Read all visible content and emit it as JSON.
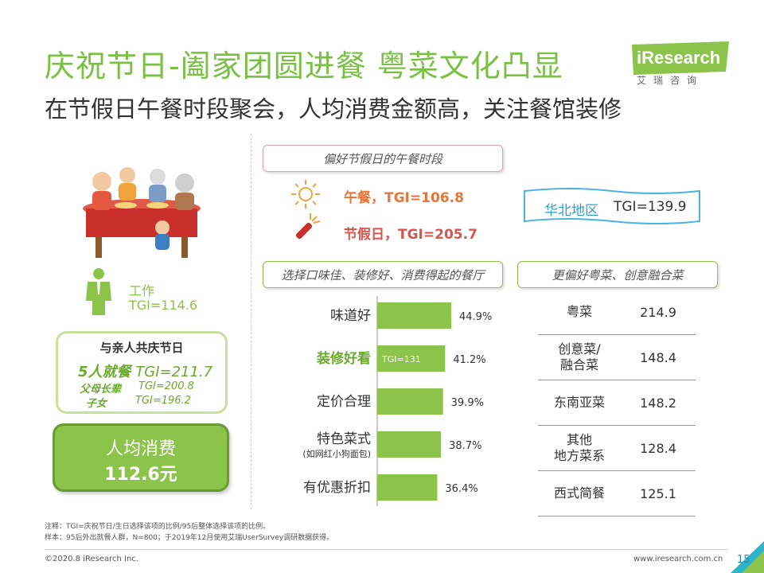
{
  "title": "庆祝节日-阖家团圆进餐 粤菜文化凸显",
  "subtitle": "在节假日午餐时段聚会，人均消费金额高，关注餐馆装修",
  "logo": {
    "word": "iResearch",
    "cn": "艾瑞咨询"
  },
  "lunch_section": {
    "label": "偏好节假日的午餐时段",
    "lunch": "午餐，TGI=106.8",
    "holiday": "节假日，TGI=205.7"
  },
  "north": {
    "name": "华北地区",
    "tgi": "TGI=139.9"
  },
  "work": {
    "label": "工作",
    "tgi": "TGI=114.6"
  },
  "family": {
    "title": "与亲人共庆节日",
    "main_name": "5人就餐",
    "main_tgi": "TGI=211.7",
    "sub1_name": "父母长辈",
    "sub1_tgi": "TGI=200.8",
    "sub2_name": "子女",
    "sub2_tgi": "TGI=196.2"
  },
  "spend": {
    "label": "人均消费",
    "value": "112.6元"
  },
  "restaurant_label": "选择口味佳、装修好、消费得起的餐厅",
  "pref_label": "更偏好粤菜、创意融合菜",
  "chart_data": {
    "type": "bar",
    "orientation": "horizontal",
    "categories": [
      "味道好",
      "装修好看",
      "定价合理",
      "特色菜式",
      "有优惠折扣"
    ],
    "category_notes": [
      "",
      "",
      "",
      "(如网红小狗面包)",
      ""
    ],
    "values": [
      44.9,
      41.2,
      39.9,
      38.7,
      36.4
    ],
    "value_labels": [
      "44.9%",
      "41.2%",
      "39.9%",
      "38.7%",
      "36.4%"
    ],
    "highlight_index": 1,
    "highlight_annotation": "TGI=131",
    "bar_color": "#8cc34a",
    "highlight_label_color": "#6aaa2c"
  },
  "cuisine_table": [
    {
      "name": [
        "粤菜"
      ],
      "value": "214.9"
    },
    {
      "name": [
        "创意菜/",
        "融合菜"
      ],
      "value": "148.4"
    },
    {
      "name": [
        "东南亚菜"
      ],
      "value": "148.2"
    },
    {
      "name": [
        "其他",
        "地方菜系"
      ],
      "value": "128.4"
    },
    {
      "name": [
        "西式简餐"
      ],
      "value": "125.1"
    }
  ],
  "notes": {
    "line1": "注释：TGI=庆祝节日/生日选择该项的比例/95后整体选择该项的比例。",
    "line2": "样本：95后外出就餐人群，N=800；于2019年12月使用艾瑞UserSurvey调研数据获得。"
  },
  "footer": {
    "copyright": "©2020.8 iResearch Inc.",
    "website": "www.iresearch.com.cn",
    "page": "15"
  },
  "colors": {
    "accent_green": "#7ac143",
    "bar_green": "#8cc34a",
    "orange": "#e8743b",
    "red": "#d9534f",
    "blue": "#2a9fd6"
  },
  "icons": [
    "sun-icon",
    "firework-icon",
    "family-dinner-illustration",
    "worker-icon",
    "wavy-banner"
  ]
}
